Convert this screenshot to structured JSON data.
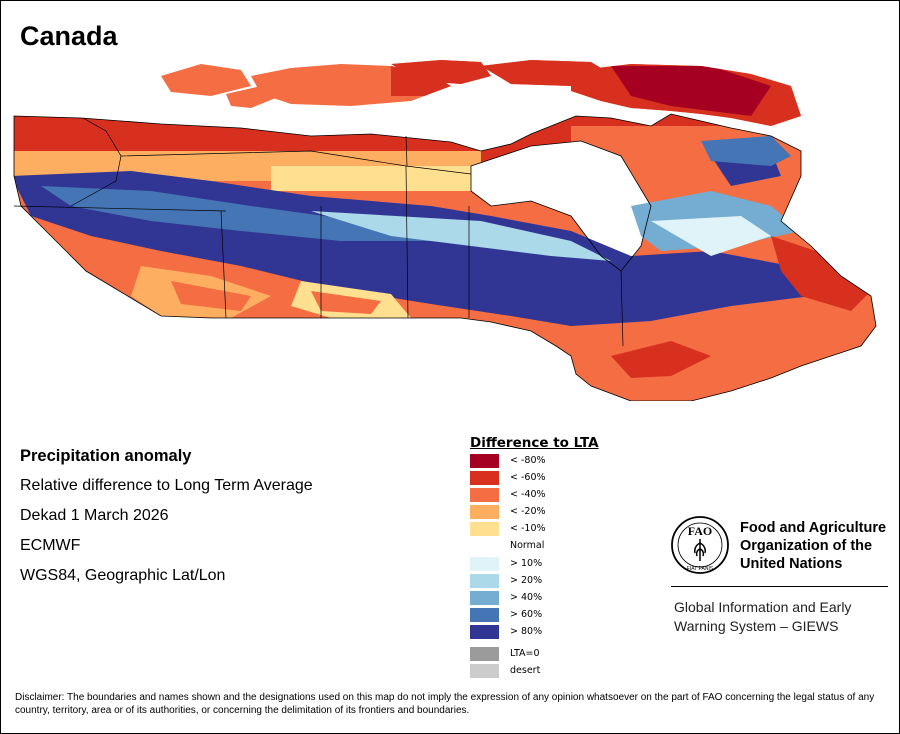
{
  "title": "Canada",
  "info": {
    "heading": "Precipitation anomaly",
    "subtitle": "Relative difference to Long Term Average",
    "period": "Dekad 1 March 2026",
    "source": "ECMWF",
    "projection": "WGS84, Geographic Lat/Lon"
  },
  "legend": {
    "title": "Difference to LTA",
    "items": [
      {
        "label": "< -80%",
        "color": "#a50021"
      },
      {
        "label": "< -60%",
        "color": "#d7301f"
      },
      {
        "label": "< -40%",
        "color": "#f46d43"
      },
      {
        "label": "< -20%",
        "color": "#fdae61"
      },
      {
        "label": "< -10%",
        "color": "#fee090"
      },
      {
        "label": "Normal",
        "color": "#ffffff"
      },
      {
        "label": "> 10%",
        "color": "#e0f3f8"
      },
      {
        "label": "> 20%",
        "color": "#abd9e9"
      },
      {
        "label": "> 40%",
        "color": "#74add1"
      },
      {
        "label": "> 60%",
        "color": "#4575b4"
      },
      {
        "label": "> 80%",
        "color": "#313695"
      },
      {
        "label": "LTA=0",
        "color": "#9b9b9b"
      },
      {
        "label": "desert",
        "color": "#cccccc"
      }
    ]
  },
  "organization": {
    "logo_text": "FAO",
    "logo_motto": "FIAT PANIS",
    "name": "Food and Agriculture Organization of the United Nations",
    "system": "Global Information and Early Warning System – GIEWS"
  },
  "disclaimer": "Disclaimer: The boundaries and names shown and the designations used on this map do not imply the expression of any opinion whatsoever on the part of FAO concerning the legal status of any country, territory, area or of its authorities, or concerning the delimitation of its frontiers and boundaries."
}
